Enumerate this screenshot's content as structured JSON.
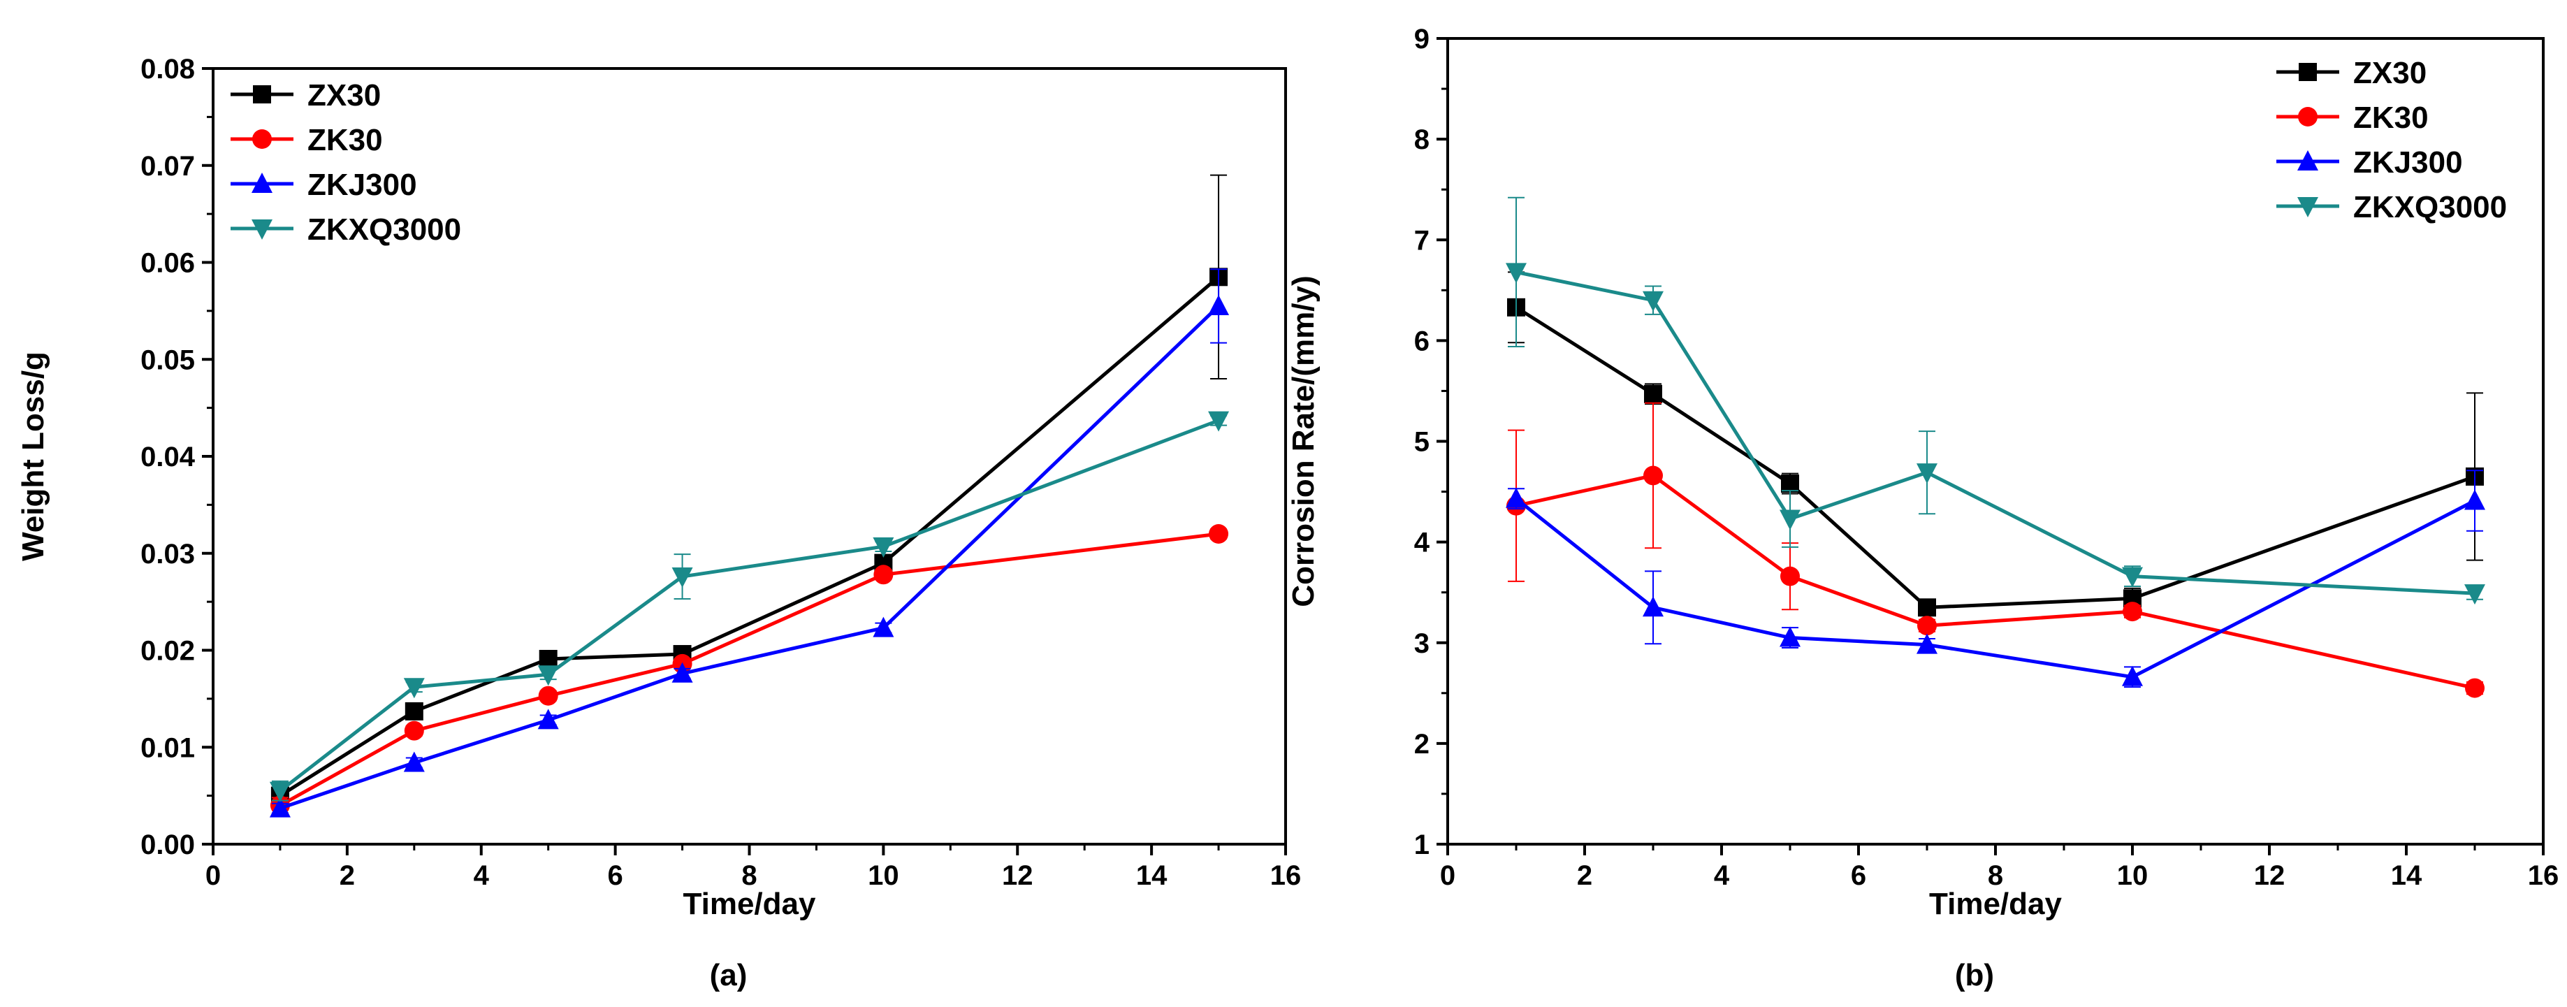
{
  "chart_data": [
    {
      "type": "line",
      "panel_label": "(a)",
      "xlabel": "Time/day",
      "ylabel": "Weight Loss/g",
      "xlim": [
        0,
        16
      ],
      "ylim": [
        0,
        0.08
      ],
      "xticks": [
        "0",
        "2",
        "4",
        "6",
        "8",
        "10",
        "12",
        "14",
        "16"
      ],
      "yticks": [
        "0.00",
        "0.01",
        "0.02",
        "0.03",
        "0.04",
        "0.05",
        "0.06",
        "0.07",
        "0.08"
      ],
      "legend_position": "top-left",
      "grid": false,
      "x": [
        1,
        3,
        5,
        7,
        10,
        15
      ],
      "series": [
        {
          "name": "ZX30",
          "color": "#000000",
          "marker": "square",
          "values": [
            0.005,
            0.0137,
            0.0191,
            0.0196,
            0.029,
            0.0585
          ],
          "errors": [
            0.0008,
            0.0005,
            0.0005,
            0.0005,
            0.0005,
            0.0105
          ]
        },
        {
          "name": "ZK30",
          "color": "#ff0000",
          "marker": "circle",
          "values": [
            0.004,
            0.0117,
            0.0153,
            0.0186,
            0.0278,
            0.032
          ],
          "errors": [
            0.0008,
            0.0005,
            0.0005,
            0.0005,
            0.0005,
            0.0005
          ]
        },
        {
          "name": "ZKJ300",
          "color": "#0000ff",
          "marker": "triangle-up",
          "values": [
            0.0037,
            0.0084,
            0.0128,
            0.0176,
            0.0223,
            0.0555
          ],
          "errors": [
            0.0005,
            0.0005,
            0.0005,
            0.0005,
            0.0005,
            0.0038
          ]
        },
        {
          "name": "ZKXQ3000",
          "color": "#1a8a8a",
          "marker": "triangle-down",
          "values": [
            0.0055,
            0.0162,
            0.0175,
            0.0276,
            0.0307,
            0.0437
          ],
          "errors": [
            0.001,
            0.0005,
            0.0005,
            0.0023,
            0.0005,
            0.0005
          ]
        }
      ]
    },
    {
      "type": "line",
      "panel_label": "(b)",
      "xlabel": "Time/day",
      "ylabel": "Corrosion Rate/(mm/y)",
      "xlim": [
        0,
        16
      ],
      "ylim": [
        1,
        9
      ],
      "xticks": [
        "0",
        "2",
        "4",
        "6",
        "8",
        "10",
        "12",
        "14",
        "16"
      ],
      "yticks": [
        "1",
        "2",
        "3",
        "4",
        "5",
        "6",
        "7",
        "8",
        "9"
      ],
      "legend_position": "top-right",
      "grid": false,
      "x": [
        1,
        3,
        5,
        7,
        10,
        15
      ],
      "series": [
        {
          "name": "ZX30",
          "color": "#000000",
          "marker": "square",
          "values": [
            6.33,
            5.47,
            4.58,
            3.35,
            3.44,
            4.65
          ],
          "errors": [
            0.35,
            0.1,
            0.1,
            0.06,
            0.1,
            0.83
          ]
        },
        {
          "name": "ZK30",
          "color": "#ff0000",
          "marker": "circle",
          "values": [
            4.36,
            4.66,
            3.66,
            3.17,
            3.31,
            2.55
          ],
          "errors": [
            0.75,
            0.72,
            0.33,
            0.06,
            0.06,
            0.06
          ]
        },
        {
          "name": "ZKJ300",
          "color": "#0000ff",
          "marker": "triangle-up",
          "values": [
            4.43,
            3.35,
            3.05,
            2.98,
            2.66,
            4.41
          ],
          "errors": [
            0.1,
            0.36,
            0.1,
            0.06,
            0.1,
            0.3
          ]
        },
        {
          "name": "ZKXQ3000",
          "color": "#1a8a8a",
          "marker": "triangle-down",
          "values": [
            6.68,
            6.4,
            4.23,
            4.69,
            3.66,
            3.49
          ],
          "errors": [
            0.74,
            0.14,
            0.28,
            0.41,
            0.1,
            0.06
          ]
        }
      ]
    }
  ]
}
